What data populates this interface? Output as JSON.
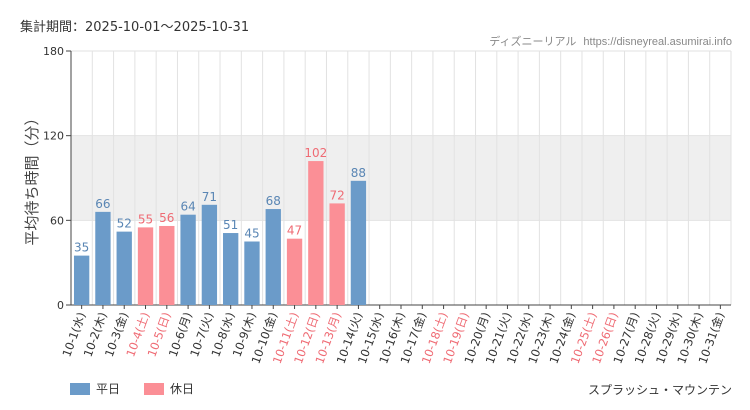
{
  "header": {
    "period": "集計期間：2025-10-01～2025-10-31",
    "source_name": "ディズニーリアル",
    "source_url": "https://disneyreal.asumirai.info"
  },
  "attraction": "スプラッシュ・マウンテン",
  "colors": {
    "weekday": "#6b9bc9",
    "holiday": "#fb8f96",
    "weekday_text": "#5a86b4",
    "holiday_text": "#ef6b74",
    "band": "#efefef",
    "grid": "#e2e2e2"
  },
  "chart_data": {
    "type": "bar",
    "ylabel": "平均待ち時間（分）",
    "ylim": [
      0,
      180
    ],
    "yticks": [
      0,
      60,
      120,
      180
    ],
    "categories": [
      "10-1(水)",
      "10-2(木)",
      "10-3(金)",
      "10-4(土)",
      "10-5(日)",
      "10-6(月)",
      "10-7(火)",
      "10-8(水)",
      "10-9(木)",
      "10-10(金)",
      "10-11(土)",
      "10-12(日)",
      "10-13(月)",
      "10-14(火)",
      "10-15(水)",
      "10-16(木)",
      "10-17(金)",
      "10-18(土)",
      "10-19(日)",
      "10-20(月)",
      "10-21(火)",
      "10-22(水)",
      "10-23(木)",
      "10-24(金)",
      "10-25(土)",
      "10-26(日)",
      "10-27(月)",
      "10-28(火)",
      "10-29(水)",
      "10-30(木)",
      "10-31(金)"
    ],
    "values": [
      35,
      66,
      52,
      55,
      56,
      64,
      71,
      51,
      45,
      68,
      47,
      102,
      72,
      88,
      null,
      null,
      null,
      null,
      null,
      null,
      null,
      null,
      null,
      null,
      null,
      null,
      null,
      null,
      null,
      null,
      null
    ],
    "holiday": [
      false,
      false,
      false,
      true,
      true,
      false,
      false,
      false,
      false,
      false,
      true,
      true,
      true,
      false,
      false,
      false,
      false,
      true,
      true,
      false,
      false,
      false,
      false,
      false,
      true,
      true,
      false,
      false,
      false,
      false,
      false
    ],
    "shaded_band": [
      60,
      120
    ],
    "legend": [
      {
        "label": "平日",
        "kind": "weekday"
      },
      {
        "label": "休日",
        "kind": "holiday"
      }
    ]
  }
}
